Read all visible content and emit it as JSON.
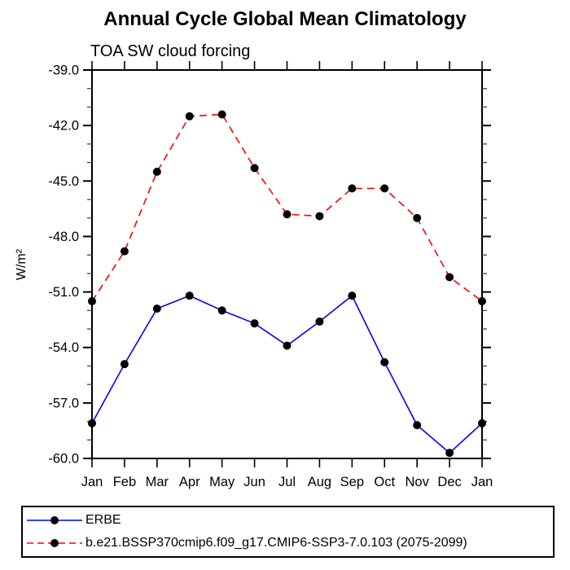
{
  "chart": {
    "frame_color": "#000000",
    "background": "#ffffff"
  },
  "chart_data": {
    "type": "line",
    "title": "Annual Cycle Global Mean Climatology",
    "subtitle": "TOA SW cloud forcing",
    "ylabel": "W/m²",
    "xlabel": "",
    "ylim": [
      -60,
      -39
    ],
    "grid": false,
    "ytick_values": [
      -39,
      -42,
      -45,
      -48,
      -51,
      -54,
      -57,
      -60
    ],
    "ytick_labels": [
      "-39.0",
      "-42.0",
      "-45.0",
      "-48.0",
      "-51.0",
      "-54.0",
      "-57.0",
      "-60.0"
    ],
    "ytick_minor_step": 1,
    "categories": [
      "Jan",
      "Feb",
      "Mar",
      "Apr",
      "May",
      "Jun",
      "Jul",
      "Aug",
      "Sep",
      "Oct",
      "Nov",
      "Dec",
      "Jan"
    ],
    "legend_position": "framed box below plot, bottom-left",
    "series": [
      {
        "name": "ERBE",
        "color": "#0000ff",
        "line_style": "solid",
        "marker": "filled-circle",
        "marker_color": "#000000",
        "values": [
          -58.1,
          -54.9,
          -51.9,
          -51.2,
          -52.0,
          -52.7,
          -53.9,
          -52.6,
          -51.2,
          -54.8,
          -58.2,
          -59.7,
          -58.1
        ]
      },
      {
        "name": "b.e21.BSSP370cmip6.f09_g17.CMIP6-SSP3-7.0.103 (2075-2099)",
        "color": "#ff0000",
        "line_style": "dashed",
        "marker": "filled-circle",
        "marker_color": "#000000",
        "values": [
          -51.5,
          -48.8,
          -44.5,
          -41.5,
          -41.4,
          -44.3,
          -46.8,
          -46.9,
          -45.4,
          -45.4,
          -47.0,
          -50.2,
          -51.5
        ]
      }
    ]
  }
}
